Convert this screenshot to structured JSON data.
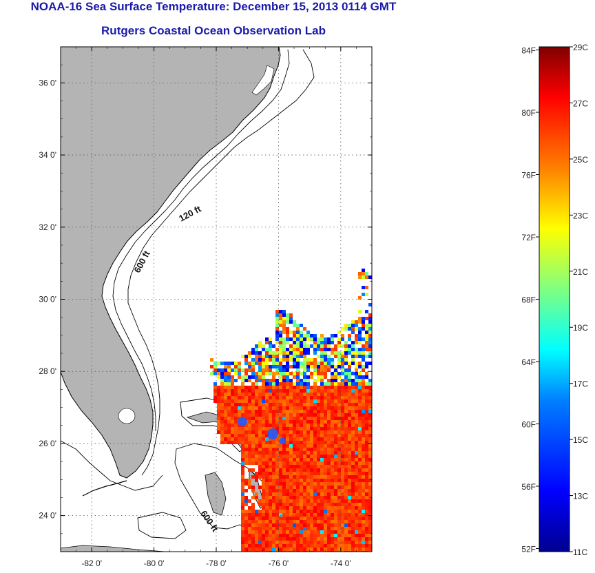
{
  "title": {
    "line1": "NOAA-16 Sea Surface Temperature:  December 15, 2013 0114 GMT",
    "line2": "Rutgers Coastal Ocean Observation Lab"
  },
  "map": {
    "lat_range": [
      23,
      37
    ],
    "lon_range": [
      -83,
      -73
    ],
    "lat_ticks": [
      {
        "value": 24,
        "label": "24 0'"
      },
      {
        "value": 26,
        "label": "26 0'"
      },
      {
        "value": 28,
        "label": "28 0'"
      },
      {
        "value": 30,
        "label": "30 0'"
      },
      {
        "value": 32,
        "label": "32 0'"
      },
      {
        "value": 34,
        "label": "34 0'"
      },
      {
        "value": 36,
        "label": "36 0'"
      }
    ],
    "lon_ticks": [
      {
        "value": -82,
        "label": "-82 0'"
      },
      {
        "value": -80,
        "label": "-80 0'"
      },
      {
        "value": -78,
        "label": "-78 0'"
      },
      {
        "value": -76,
        "label": "-76 0'"
      },
      {
        "value": -74,
        "label": "-74 0'"
      }
    ],
    "contour_labels": [
      {
        "text": "120 ft",
        "lon": -78.8,
        "lat": 32.3
      },
      {
        "text": "600 ft",
        "lon": -80.3,
        "lat": 31.0
      },
      {
        "text": "600 ft",
        "lon": -78.3,
        "lat": 23.8
      }
    ],
    "colors": {
      "land": "#b4b4b4",
      "water": "#ffffff",
      "grid": "#555555"
    }
  },
  "colorbar": {
    "celsius_labels": [
      "29C",
      "27C",
      "25C",
      "23C",
      "21C",
      "19C",
      "17C",
      "15C",
      "13C",
      "11C"
    ],
    "fahrenheit_labels": [
      "84F",
      "80F",
      "76F",
      "72F",
      "68F",
      "64F",
      "60F",
      "56F",
      "52F"
    ],
    "celsius_range": [
      11,
      29
    ],
    "colors": [
      "#00008f",
      "#0000ff",
      "#0080ff",
      "#00ffff",
      "#80ff80",
      "#ffff00",
      "#ff8000",
      "#ff0000",
      "#800000"
    ]
  }
}
